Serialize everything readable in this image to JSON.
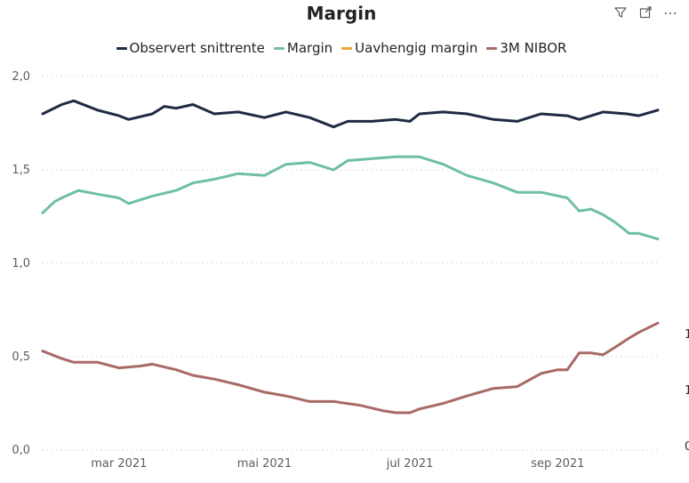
{
  "toolbar": {
    "filter_icon": "filter-icon",
    "focus_icon": "focus-mode-icon",
    "more_label": "⋯"
  },
  "chart_data": {
    "type": "line",
    "title": "Margin",
    "xlabel": "",
    "ylabel": "",
    "x_range": [
      "2021-01-28",
      "2021-10-13"
    ],
    "ylim": [
      0,
      2
    ],
    "y_ticks": [
      "2,0",
      "1,5",
      "1,0",
      "0,5",
      "0,0"
    ],
    "y_tick_values": [
      2.0,
      1.5,
      1.0,
      0.5,
      0.0
    ],
    "x_ticks": [
      {
        "date": "2021-03-01",
        "label": "mar 2021"
      },
      {
        "date": "2021-05-01",
        "label": "mai 2021"
      },
      {
        "date": "2021-07-01",
        "label": "jul 2021"
      },
      {
        "date": "2021-09-01",
        "label": "sep 2021"
      }
    ],
    "right_axis_labels": [
      "1",
      "1",
      "0"
    ],
    "right_axis_values": [
      0.62,
      0.32,
      0.02
    ],
    "legend_position": "top-center",
    "series": [
      {
        "name": "Observert snittrente",
        "color": "#1f2a44",
        "dates": [
          "2021-01-28",
          "2021-02-05",
          "2021-02-10",
          "2021-02-20",
          "2021-03-01",
          "2021-03-05",
          "2021-03-15",
          "2021-03-20",
          "2021-03-25",
          "2021-04-01",
          "2021-04-10",
          "2021-04-20",
          "2021-05-01",
          "2021-05-10",
          "2021-05-20",
          "2021-05-30",
          "2021-06-05",
          "2021-06-15",
          "2021-06-25",
          "2021-07-01",
          "2021-07-05",
          "2021-07-15",
          "2021-07-25",
          "2021-08-05",
          "2021-08-15",
          "2021-08-25",
          "2021-09-05",
          "2021-09-10",
          "2021-09-20",
          "2021-09-30",
          "2021-10-05",
          "2021-10-13"
        ],
        "values": [
          1.8,
          1.85,
          1.87,
          1.82,
          1.79,
          1.77,
          1.8,
          1.84,
          1.83,
          1.85,
          1.8,
          1.81,
          1.78,
          1.81,
          1.78,
          1.73,
          1.76,
          1.76,
          1.77,
          1.76,
          1.8,
          1.81,
          1.8,
          1.77,
          1.76,
          1.8,
          1.79,
          1.77,
          1.81,
          1.8,
          1.79,
          1.82
        ]
      },
      {
        "name": "Margin",
        "color": "#6fbfa4",
        "dates": [
          "2021-01-28",
          "2021-02-02",
          "2021-02-05",
          "2021-02-12",
          "2021-02-20",
          "2021-03-01",
          "2021-03-05",
          "2021-03-15",
          "2021-03-25",
          "2021-04-01",
          "2021-04-10",
          "2021-04-20",
          "2021-05-01",
          "2021-05-10",
          "2021-05-20",
          "2021-05-30",
          "2021-06-05",
          "2021-06-15",
          "2021-06-25",
          "2021-07-05",
          "2021-07-15",
          "2021-07-25",
          "2021-08-05",
          "2021-08-15",
          "2021-08-25",
          "2021-09-05",
          "2021-09-10",
          "2021-09-15",
          "2021-09-20",
          "2021-09-25",
          "2021-10-01",
          "2021-10-05",
          "2021-10-13"
        ],
        "values": [
          1.27,
          1.33,
          1.35,
          1.39,
          1.37,
          1.35,
          1.32,
          1.36,
          1.39,
          1.43,
          1.45,
          1.48,
          1.47,
          1.53,
          1.54,
          1.5,
          1.55,
          1.56,
          1.57,
          1.57,
          1.53,
          1.47,
          1.43,
          1.38,
          1.38,
          1.35,
          1.28,
          1.29,
          1.26,
          1.22,
          1.16,
          1.16,
          1.13
        ]
      },
      {
        "name": "Uavhengig margin",
        "color": "#e8a838",
        "dates": [],
        "values": []
      },
      {
        "name": "3M NIBOR",
        "color": "#a86a66",
        "dates": [
          "2021-01-28",
          "2021-02-05",
          "2021-02-10",
          "2021-02-20",
          "2021-03-01",
          "2021-03-10",
          "2021-03-15",
          "2021-03-25",
          "2021-04-01",
          "2021-04-10",
          "2021-04-20",
          "2021-05-01",
          "2021-05-10",
          "2021-05-20",
          "2021-05-30",
          "2021-06-10",
          "2021-06-20",
          "2021-06-25",
          "2021-07-01",
          "2021-07-05",
          "2021-07-15",
          "2021-07-25",
          "2021-08-05",
          "2021-08-15",
          "2021-08-25",
          "2021-09-01",
          "2021-09-05",
          "2021-09-10",
          "2021-09-15",
          "2021-09-20",
          "2021-09-25",
          "2021-10-01",
          "2021-10-05",
          "2021-10-13"
        ],
        "values": [
          0.53,
          0.49,
          0.47,
          0.47,
          0.44,
          0.45,
          0.46,
          0.43,
          0.4,
          0.38,
          0.35,
          0.31,
          0.29,
          0.26,
          0.26,
          0.24,
          0.21,
          0.2,
          0.2,
          0.22,
          0.25,
          0.29,
          0.33,
          0.34,
          0.41,
          0.43,
          0.43,
          0.52,
          0.52,
          0.51,
          0.55,
          0.6,
          0.63,
          0.68
        ]
      }
    ]
  }
}
